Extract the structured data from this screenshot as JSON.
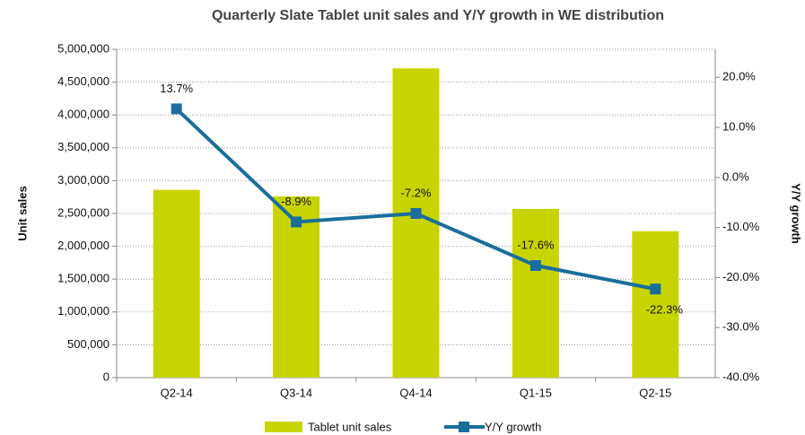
{
  "chart_data": {
    "type": "bar_line",
    "title": "Quarterly Slate Tablet unit sales and Y/Y growth in WE distribution",
    "y_label": "Unit sales",
    "y2_label": "Y/Y growth",
    "categories": [
      "Q2-14",
      "Q3-14",
      "Q4-14",
      "Q1-15",
      "Q2-15"
    ],
    "series": [
      {
        "name": "Tablet unit sales",
        "type": "bar",
        "color": "#c8d400",
        "values": [
          2860000,
          2760000,
          4710000,
          2570000,
          2230000
        ]
      },
      {
        "name": "Y/Y growth",
        "type": "line",
        "axis": "y2",
        "color": "#1a6e9c",
        "values": [
          13.7,
          -8.9,
          -7.2,
          -17.6,
          -22.3
        ],
        "value_labels": [
          "13.7%",
          "-8.9%",
          "-7.2%",
          "-17.6%",
          "-22.3%"
        ]
      }
    ],
    "ylim": [
      0,
      5000000
    ],
    "yticks": [
      0,
      {
        "value": 500000,
        "label": "500,000"
      },
      {
        "value": 1000000,
        "label": "1,000,000"
      },
      {
        "value": 1500000,
        "label": "1,500,000"
      },
      {
        "value": 2000000,
        "label": "2,000,000"
      },
      {
        "value": 2500000,
        "label": "2,500,000"
      },
      {
        "value": 3000000,
        "label": "3,000,000"
      },
      {
        "value": 3500000,
        "label": "3,500,000"
      },
      {
        "value": 4000000,
        "label": "4,000,000"
      },
      {
        "value": 4500000,
        "label": "4,500,000"
      },
      {
        "value": 5000000,
        "label": "5,000,000"
      }
    ],
    "y2lim": [
      -40,
      25.6
    ],
    "y2ticks": [
      {
        "value": -40,
        "label": "-40.0%"
      },
      {
        "value": -30,
        "label": "-30.0%"
      },
      {
        "value": -20,
        "label": "-20.0%"
      },
      {
        "value": -10,
        "label": "-10.0%"
      },
      {
        "value": 0,
        "label": "0.0%"
      },
      {
        "value": 10,
        "label": "10.0%"
      },
      {
        "value": 20,
        "label": "20.0%"
      }
    ],
    "grid": true,
    "legend": "bottom"
  }
}
